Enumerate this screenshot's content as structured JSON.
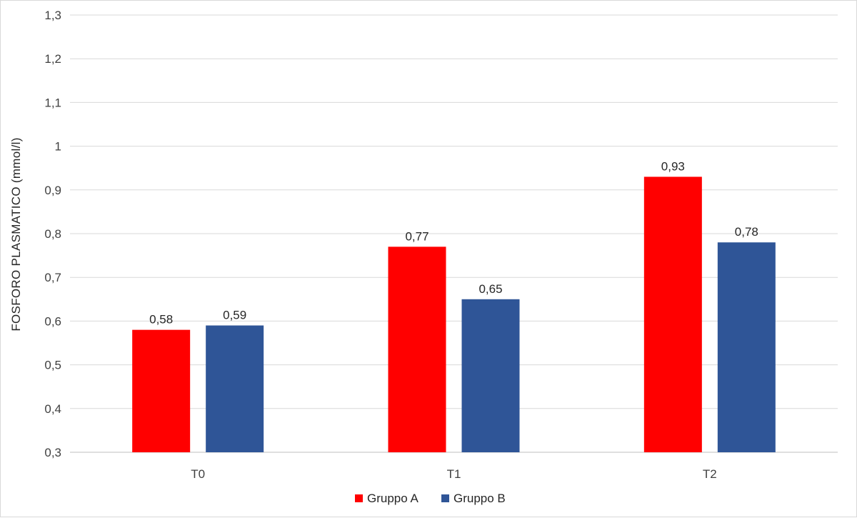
{
  "chart_data": {
    "type": "bar",
    "title": "",
    "xlabel": "",
    "ylabel": "FOSFORO  PLASMATICO  (mmol/l)",
    "categories": [
      "T0",
      "T1",
      "T2"
    ],
    "series": [
      {
        "name": "Gruppo A",
        "color": "#ff0000",
        "values": [
          0.58,
          0.77,
          0.93
        ],
        "labels": [
          "0,58",
          "0,77",
          "0,93"
        ]
      },
      {
        "name": "Gruppo B",
        "color": "#2f5597",
        "values": [
          0.59,
          0.65,
          0.78
        ],
        "labels": [
          "0,59",
          "0,65",
          "0,78"
        ]
      }
    ],
    "ylim": [
      0.3,
      1.3
    ],
    "yticks": [
      0.3,
      0.4,
      0.5,
      0.6,
      0.7,
      0.8,
      0.9,
      1,
      1.1,
      1.2,
      1.3
    ],
    "ytick_labels": [
      "0,3",
      "0,4",
      "0,5",
      "0,6",
      "0,7",
      "0,8",
      "0,9",
      "1",
      "1,1",
      "1,2",
      "1,3"
    ],
    "grid": true,
    "legend_position": "bottom-center"
  }
}
